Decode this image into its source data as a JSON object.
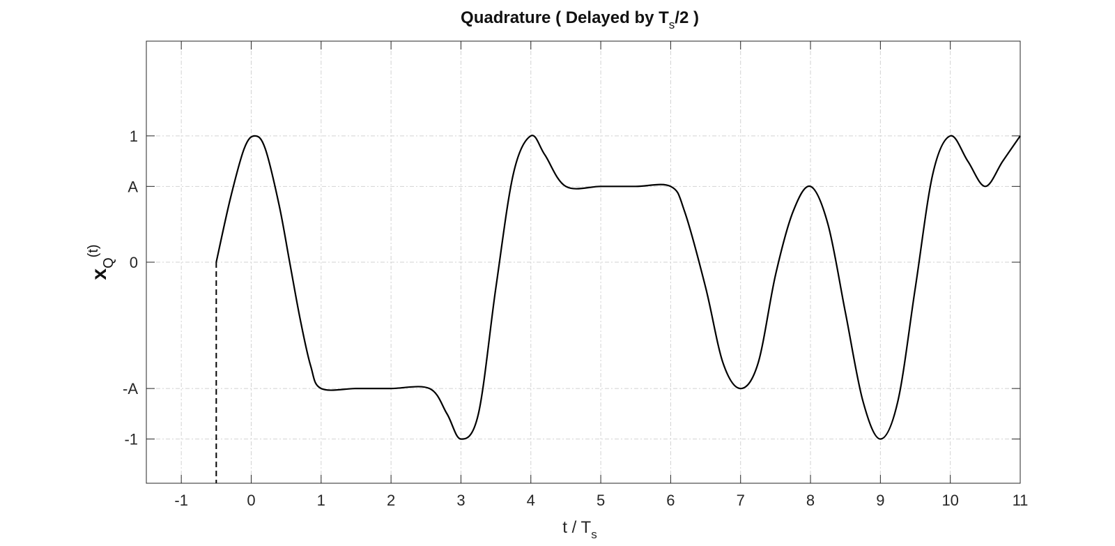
{
  "chart_data": {
    "type": "line",
    "title": {
      "main": "Quadrature  ( Delayed by T",
      "sub": "s",
      "tail": "/2 )"
    },
    "xlabel": {
      "main": "t / T",
      "sub": "s"
    },
    "ylabel": {
      "main": "x",
      "sub": "Q",
      "tail": "(t)"
    },
    "xlim": [
      -1.5,
      11
    ],
    "ylim": [
      -1.75,
      1.75
    ],
    "x_ticks": [
      {
        "value": -1,
        "label": "-1"
      },
      {
        "value": 0,
        "label": "0"
      },
      {
        "value": 1,
        "label": "1"
      },
      {
        "value": 2,
        "label": "2"
      },
      {
        "value": 3,
        "label": "3"
      },
      {
        "value": 4,
        "label": "4"
      },
      {
        "value": 5,
        "label": "5"
      },
      {
        "value": 6,
        "label": "6"
      },
      {
        "value": 7,
        "label": "7"
      },
      {
        "value": 8,
        "label": "8"
      },
      {
        "value": 9,
        "label": "9"
      },
      {
        "value": 10,
        "label": "10"
      },
      {
        "value": 11,
        "label": "11"
      }
    ],
    "y_ticks": [
      {
        "value": 1,
        "label": "1"
      },
      {
        "value": 0.6,
        "label": "A"
      },
      {
        "value": 0,
        "label": "0"
      },
      {
        "value": -1,
        "label": "-A"
      },
      {
        "value": -1.4,
        "label": "-1"
      }
    ],
    "grid": true,
    "series": [
      {
        "color": "#000000",
        "style": "solid",
        "x": [
          -0.5,
          -0.3,
          -0.1,
          0.05,
          0.2,
          0.4,
          0.55,
          0.7,
          0.85,
          1.0,
          1.5,
          2.0,
          2.55,
          2.8,
          3.0,
          3.25,
          3.5,
          3.75,
          4.0,
          4.2,
          4.5,
          5.0,
          5.5,
          6.0,
          6.2,
          6.5,
          6.75,
          7.0,
          7.25,
          7.5,
          7.75,
          8.0,
          8.25,
          8.5,
          8.75,
          9.0,
          9.25,
          9.5,
          9.75,
          10.0,
          10.25,
          10.5,
          10.75,
          11.0
        ],
        "y": [
          0,
          0.5,
          0.9,
          1.0,
          0.9,
          0.45,
          0.0,
          -0.45,
          -0.82,
          -1.0,
          -1.0,
          -1.0,
          -1.0,
          -1.2,
          -1.4,
          -1.2,
          -0.2,
          0.7,
          1.0,
          0.85,
          0.6,
          0.6,
          0.6,
          0.6,
          0.4,
          -0.2,
          -0.8,
          -1.0,
          -0.8,
          -0.1,
          0.4,
          0.6,
          0.3,
          -0.4,
          -1.1,
          -1.4,
          -1.1,
          -0.2,
          0.7,
          1.0,
          0.8,
          0.6,
          0.8,
          1.0
        ]
      },
      {
        "color": "#000000",
        "style": "dashed",
        "x": [
          -0.5,
          -0.5
        ],
        "y": [
          0,
          -1.75
        ]
      }
    ]
  }
}
